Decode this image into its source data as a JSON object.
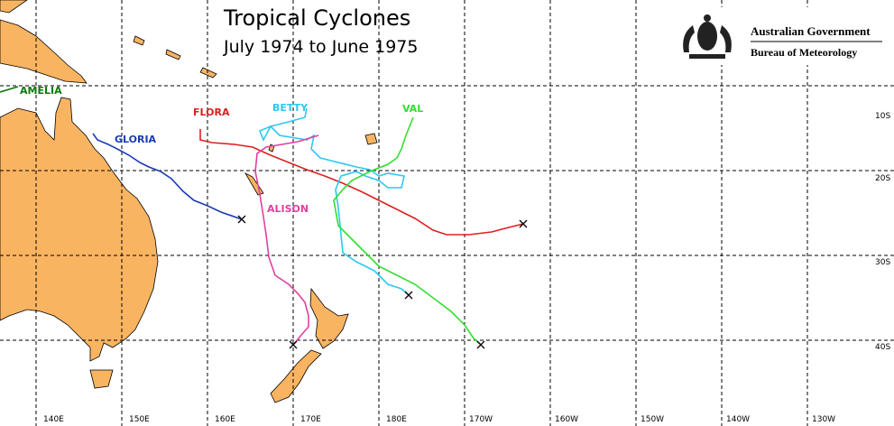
{
  "title": "Tropical Cyclones",
  "subtitle": "July 1974 to June 1975",
  "logo": {
    "line1": "Australian Government",
    "line2": "Bureau of Meteorology"
  },
  "storms": [
    {
      "name": "AMELIA"
    },
    {
      "name": "GLORIA"
    },
    {
      "name": "FLORA"
    },
    {
      "name": "BETTY"
    },
    {
      "name": "VAL"
    },
    {
      "name": "ALISON"
    }
  ],
  "longitude_labels": [
    "140E",
    "150E",
    "160E",
    "170E",
    "180E",
    "170W",
    "160W",
    "150W",
    "140W",
    "130W"
  ],
  "latitude_labels": [
    "10S",
    "20S",
    "30S",
    "40S"
  ]
}
